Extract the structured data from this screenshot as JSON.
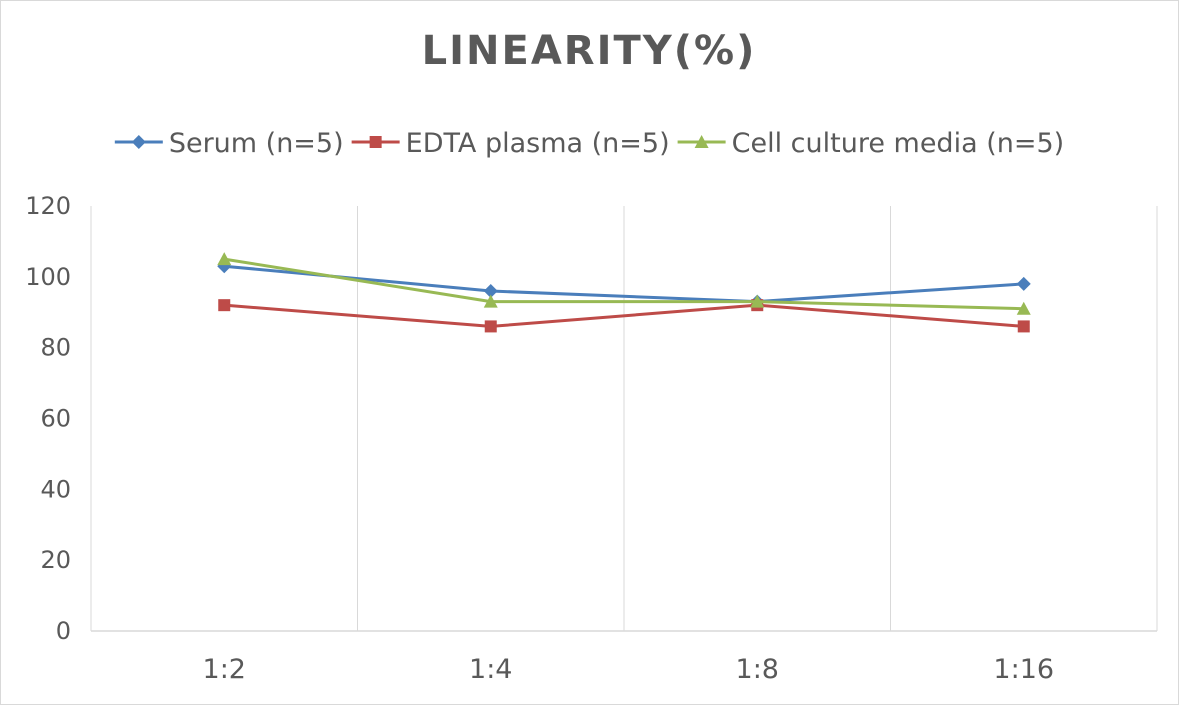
{
  "chart_data": {
    "type": "line",
    "title": "LINEARITY(%)",
    "xlabel": "",
    "ylabel": "",
    "categories": [
      "1:2",
      "1:4",
      "1:8",
      "1:16"
    ],
    "ylim": [
      0,
      120
    ],
    "yticks": [
      0,
      20,
      40,
      60,
      80,
      100,
      120
    ],
    "grid": "vertical",
    "legend_position": "top",
    "series": [
      {
        "name": "Serum (n=5)",
        "values": [
          103,
          96,
          93,
          98
        ],
        "color": "#4a7ebb",
        "marker": "diamond"
      },
      {
        "name": "EDTA plasma (n=5)",
        "values": [
          92,
          86,
          92,
          86
        ],
        "color": "#be4b48",
        "marker": "square"
      },
      {
        "name": "Cell culture media (n=5)",
        "values": [
          105,
          93,
          93,
          91
        ],
        "color": "#98b954",
        "marker": "triangle"
      }
    ]
  }
}
